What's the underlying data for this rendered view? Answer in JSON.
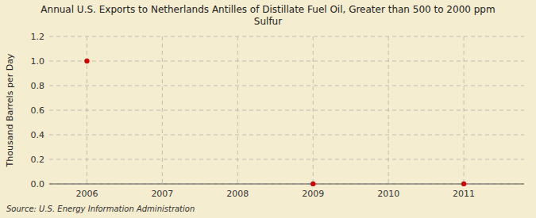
{
  "chart_data": {
    "type": "scatter",
    "title": "Annual U.S. Exports to Netherlands Antilles of Distillate Fuel Oil, Greater than 500 to 2000 ppm\nSulfur",
    "y_label": "Thousand Barrels per Day",
    "annotations": [
      "Source: U.S. Energy Information Administration"
    ],
    "x": [
      2006,
      2009,
      2011
    ],
    "values": [
      1.0,
      0.0,
      0.0
    ],
    "color": "#cc0000",
    "marker": "circle",
    "xlim": [
      2005.5,
      2011.8
    ],
    "ylim": [
      0.0,
      1.2
    ],
    "xticks": [
      2006,
      2007,
      2008,
      2009,
      2010,
      2011
    ],
    "yticks": [
      {
        "value": 0,
        "label": "0.0"
      },
      0.2,
      0.4,
      0.6,
      0.8,
      {
        "value": 1,
        "label": "1.0"
      },
      1.2
    ],
    "grid": true
  }
}
